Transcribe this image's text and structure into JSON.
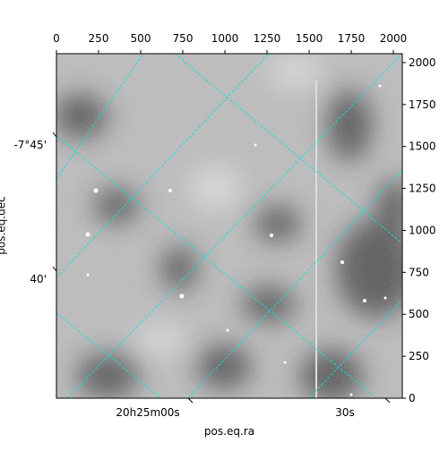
{
  "chart_data": {
    "type": "image",
    "xlabel": "pos.eq.ra",
    "ylabel": "pos.eq.dec",
    "xlim": [
      0,
      2053
    ],
    "ylim": [
      0,
      2053
    ],
    "xticks": [
      0,
      250,
      500,
      750,
      1000,
      1250,
      1500,
      1750,
      2000
    ],
    "yticks": [
      0,
      250,
      500,
      750,
      1000,
      1250,
      1500,
      1750,
      2000
    ],
    "ra_ticks": [
      "20h25m00s",
      "30s"
    ],
    "dec_ticks": [
      "-7°45'",
      "40'"
    ],
    "grid_color": "#00e5e5"
  }
}
